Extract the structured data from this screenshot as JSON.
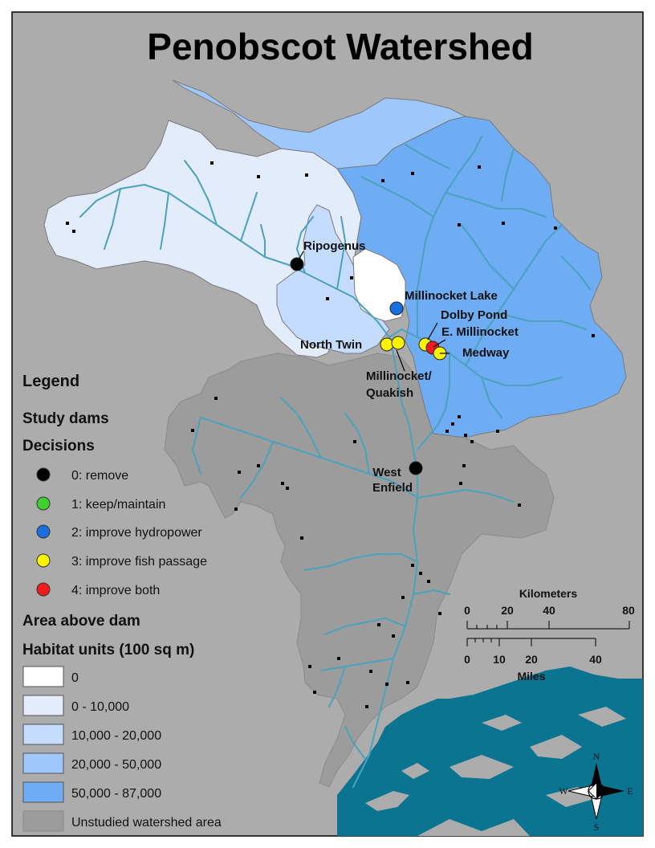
{
  "title": "Penobscot Watershed",
  "colors": {
    "background": "#acacac",
    "unstudied": "#9c9c9c",
    "class_0": "#ffffff",
    "class_1": "#e2ecfb",
    "class_2": "#c4dcff",
    "class_3": "#9ec8fb",
    "class_4": "#6eacf3",
    "river": "#4aa2bd",
    "ocean": "#0a7491",
    "dam_marker": "#000000"
  },
  "dams": [
    {
      "label": "Ripogenus",
      "decision": 0
    },
    {
      "label": "Millinocket Lake",
      "decision": 2
    },
    {
      "label": "Dolby Pond",
      "decision": 3
    },
    {
      "label": "E. Millinocket",
      "decision": 4
    },
    {
      "label": "Medway",
      "decision": 3
    },
    {
      "label": "North Twin",
      "decision": 3
    },
    {
      "label": "Millinocket/ Quakish",
      "label_lines": [
        "Millinocket/",
        "Quakish"
      ],
      "decision": 3
    },
    {
      "label": "West Enfield",
      "label_lines": [
        "West",
        "Enfield"
      ],
      "decision": 0
    }
  ],
  "legend": {
    "title": "Legend",
    "section1": "Study dams",
    "section1b": "Decisions",
    "decisions": [
      {
        "label": "0: remove",
        "color": "#000000"
      },
      {
        "label": "1: keep/maintain",
        "color": "#3fd12b"
      },
      {
        "label": "2: improve hydropower",
        "color": "#1a6fe0"
      },
      {
        "label": "3: improve fish passage",
        "color": "#fbf300"
      },
      {
        "label": "4: improve both",
        "color": "#f21a1a"
      }
    ],
    "section2": "Area above dam",
    "section2b": "Habitat units (100 sq m)",
    "habitat": [
      {
        "label": "0",
        "color": "#ffffff"
      },
      {
        "label": "0 - 10,000",
        "color": "#e2ecfb"
      },
      {
        "label": "10,000 - 20,000",
        "color": "#c4dcff"
      },
      {
        "label": "20,000 - 50,000",
        "color": "#9ec8fb"
      },
      {
        "label": "50,000 - 87,000",
        "color": "#6eacf3"
      },
      {
        "label": "Unstudied watershed area",
        "color": "#9c9c9c"
      }
    ]
  },
  "scalebar": {
    "km_title": "Kilometers",
    "km_ticks": [
      "0",
      "20",
      "40",
      "80"
    ],
    "mi_ticks": [
      "0",
      "10",
      "20",
      "40"
    ],
    "mi_title": "Miles"
  },
  "north_arrow": {
    "n": "N",
    "s": "S",
    "e": "E",
    "w": "W"
  }
}
